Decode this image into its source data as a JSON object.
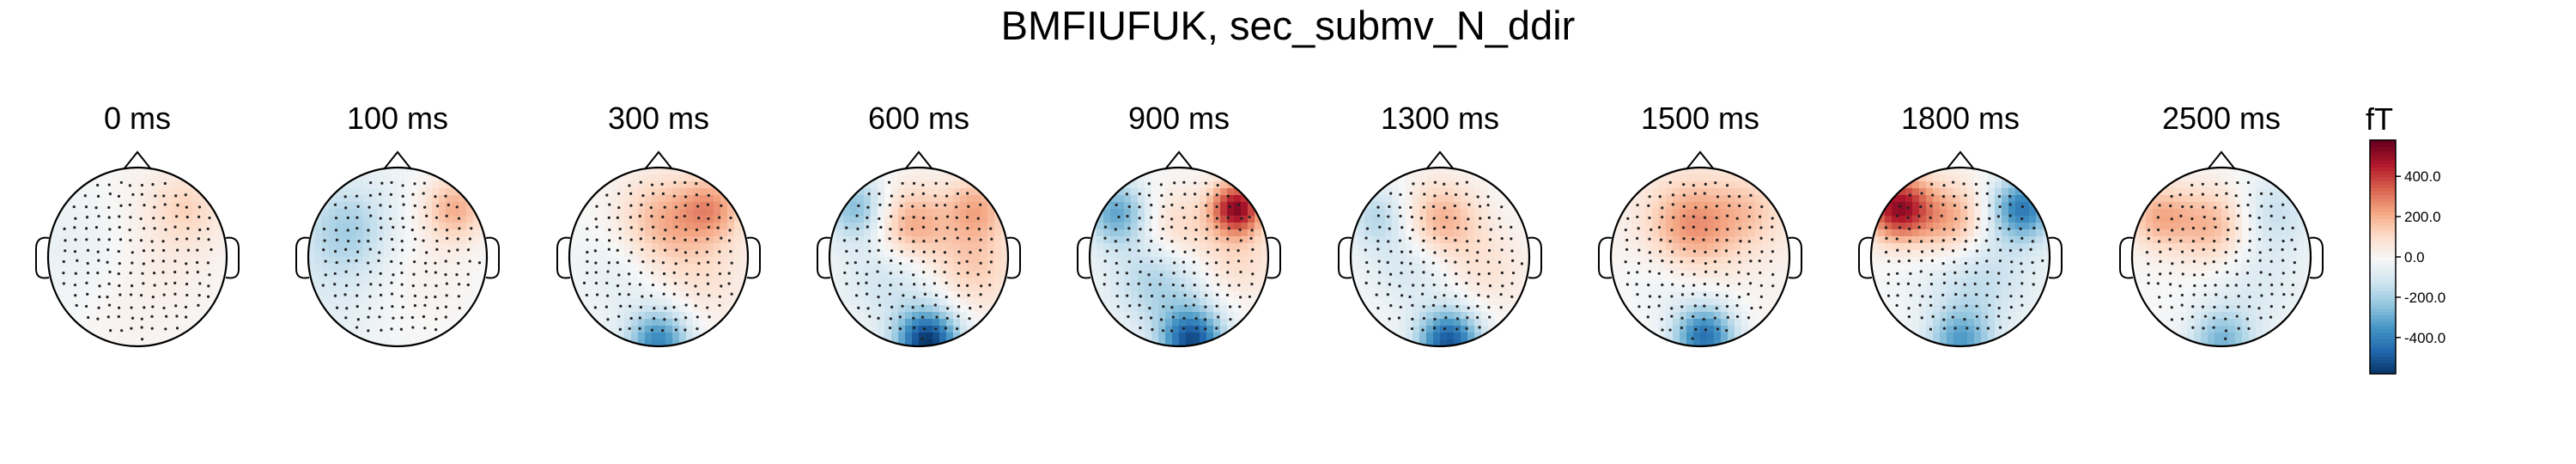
{
  "title": "BMFIUFUK, sec_submv_N_ddir",
  "chart_data": {
    "type": "heatmap",
    "kind": "topomap",
    "times": [
      "0 ms",
      "100 ms",
      "300 ms",
      "600 ms",
      "900 ms",
      "1300 ms",
      "1500 ms",
      "1800 ms",
      "2500 ms"
    ],
    "colorbar": {
      "unit": "fT",
      "ticks": [
        "400.0",
        "200.0",
        "0.0",
        "-200.0",
        "-400.0"
      ],
      "tick_values": [
        400,
        200,
        0,
        -200,
        -400
      ],
      "range": [
        -580,
        580
      ],
      "colormap": "RdBu_r",
      "colors": {
        "max": "#67001f",
        "mid": "#f7f7f7",
        "min": "#053061"
      }
    }
  }
}
